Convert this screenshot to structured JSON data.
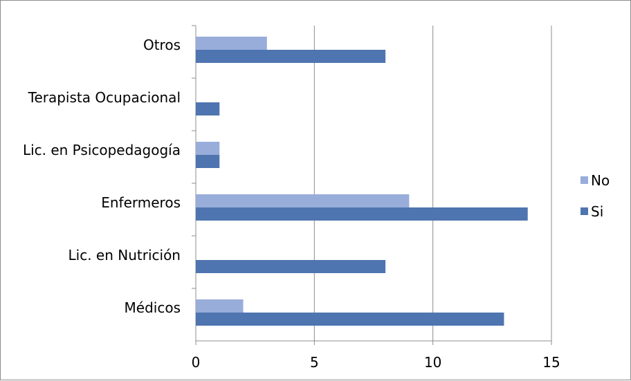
{
  "chart_data": {
    "type": "bar",
    "orientation": "horizontal",
    "categories": [
      "Médicos",
      "Lic. en Nutrición",
      "Enfermeros",
      "Lic. en Psicopedagogía",
      "Terapista Ocupacional",
      "Otros"
    ],
    "series": [
      {
        "name": "Si",
        "values": [
          13,
          8,
          14,
          1,
          1,
          8
        ],
        "color": "#4f75b0"
      },
      {
        "name": "No",
        "values": [
          2,
          0,
          9,
          1,
          0,
          3
        ],
        "color": "#98adda"
      }
    ],
    "x_ticks": [
      0,
      5,
      10,
      15
    ],
    "xlim": [
      0,
      15
    ],
    "grid": true,
    "legend_position": "right",
    "legend_order": [
      "No",
      "Si"
    ],
    "title": "",
    "xlabel": "",
    "ylabel": ""
  }
}
